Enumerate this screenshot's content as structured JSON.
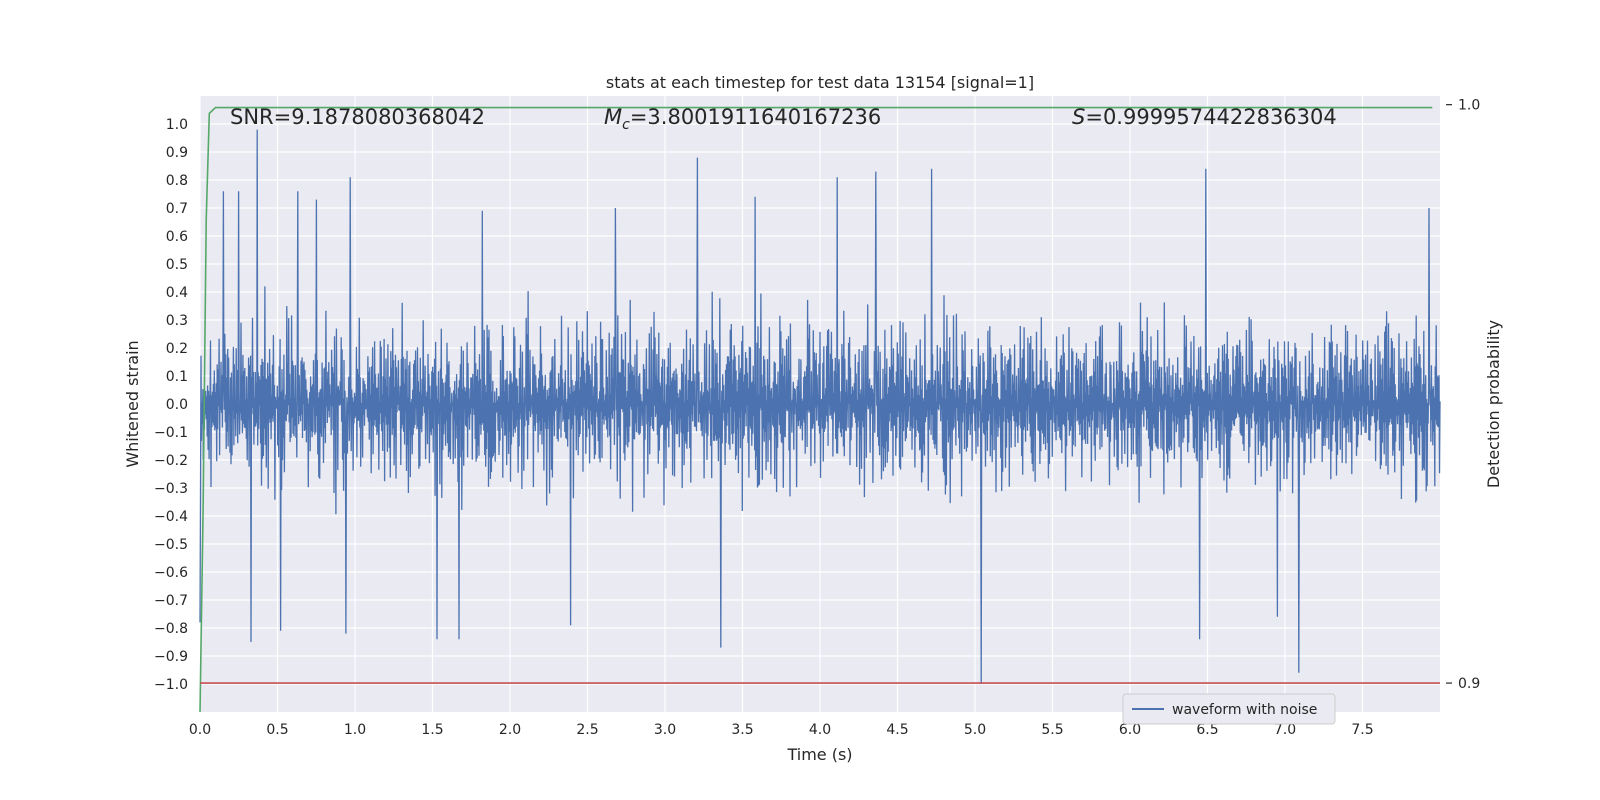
{
  "chart_data": {
    "type": "line",
    "title": "stats at each timestep for test data 13154 [signal=1]",
    "xlabel": "Time (s)",
    "ylabel": "Whitened strain",
    "y2label": "Detection probability",
    "xlim": [
      0.0,
      8.0
    ],
    "ylim": [
      -1.1,
      1.1
    ],
    "y2lim": [
      0.895,
      1.0015
    ],
    "x_ticks": [
      "0.0",
      "0.5",
      "1.0",
      "1.5",
      "2.0",
      "2.5",
      "3.0",
      "3.5",
      "4.0",
      "4.5",
      "5.0",
      "5.5",
      "6.0",
      "6.5",
      "7.0",
      "7.5"
    ],
    "x_tick_values": [
      0.0,
      0.5,
      1.0,
      1.5,
      2.0,
      2.5,
      3.0,
      3.5,
      4.0,
      4.5,
      5.0,
      5.5,
      6.0,
      6.5,
      7.0,
      7.5
    ],
    "y_ticks": [
      "1.0",
      "0.9",
      "0.8",
      "0.7",
      "0.6",
      "0.5",
      "0.4",
      "0.3",
      "0.2",
      "0.1",
      "0.0",
      "−0.1",
      "−0.2",
      "−0.3",
      "−0.4",
      "−0.5",
      "−0.6",
      "−0.7",
      "−0.8",
      "−0.9",
      "−1.0"
    ],
    "y_tick_values": [
      1.0,
      0.9,
      0.8,
      0.7,
      0.6,
      0.5,
      0.4,
      0.3,
      0.2,
      0.1,
      0.0,
      -0.1,
      -0.2,
      -0.3,
      -0.4,
      -0.5,
      -0.6,
      -0.7,
      -0.8,
      -0.9,
      -1.0
    ],
    "y2_ticks": [
      "1.0",
      "0.9"
    ],
    "y2_tick_values": [
      1.0,
      0.9
    ],
    "grid": true,
    "legend_placement": "lower-right",
    "annotations": {
      "snr": "SNR=9.1878080368042",
      "mc_symbol": "M",
      "mc_subscript": "c",
      "mc_value": "=3.8001911640167236",
      "s_symbol": "S",
      "s_value": "=0.9999574422836304"
    },
    "series": [
      {
        "name": "waveform with noise",
        "color": "#4c72b0",
        "axis": "left",
        "kind": "noise_waveform",
        "x_range": [
          0.0,
          8.0
        ],
        "typical_envelope": [
          -0.45,
          0.5
        ],
        "peaks": [
          {
            "x": 0.0,
            "y": -0.78
          },
          {
            "x": 0.15,
            "y": 0.76
          },
          {
            "x": 0.25,
            "y": 0.76
          },
          {
            "x": 0.33,
            "y": -0.85
          },
          {
            "x": 0.37,
            "y": 0.98
          },
          {
            "x": 0.52,
            "y": -0.81
          },
          {
            "x": 0.63,
            "y": 0.76
          },
          {
            "x": 0.75,
            "y": 0.73
          },
          {
            "x": 0.94,
            "y": -0.82
          },
          {
            "x": 0.97,
            "y": 0.81
          },
          {
            "x": 1.53,
            "y": -0.84
          },
          {
            "x": 1.67,
            "y": -0.84
          },
          {
            "x": 1.82,
            "y": 0.69
          },
          {
            "x": 2.39,
            "y": -0.79
          },
          {
            "x": 2.68,
            "y": 0.7
          },
          {
            "x": 3.21,
            "y": 0.88
          },
          {
            "x": 3.36,
            "y": -0.87
          },
          {
            "x": 3.58,
            "y": 0.74
          },
          {
            "x": 4.11,
            "y": 0.81
          },
          {
            "x": 4.36,
            "y": 0.83
          },
          {
            "x": 4.72,
            "y": 0.84
          },
          {
            "x": 5.04,
            "y": -1.0
          },
          {
            "x": 6.49,
            "y": 0.84
          },
          {
            "x": 6.45,
            "y": -0.84
          },
          {
            "x": 6.95,
            "y": -0.76
          },
          {
            "x": 7.09,
            "y": -0.96
          },
          {
            "x": 7.93,
            "y": 0.7
          }
        ]
      },
      {
        "name": "",
        "color": "#55a868",
        "axis": "right",
        "x": [
          0.0,
          0.02,
          0.04,
          0.06,
          0.1,
          0.2,
          1.0,
          2.0,
          4.0,
          6.0,
          7.95
        ],
        "y": [
          0.895,
          0.93,
          0.98,
          0.9985,
          0.9995,
          0.9995,
          0.9995,
          0.9995,
          0.9995,
          0.9995,
          0.9995
        ]
      },
      {
        "name": "",
        "color": "#c44e52",
        "axis": "right",
        "x": [
          0.0,
          8.0
        ],
        "y": [
          0.9,
          0.9
        ]
      }
    ]
  }
}
